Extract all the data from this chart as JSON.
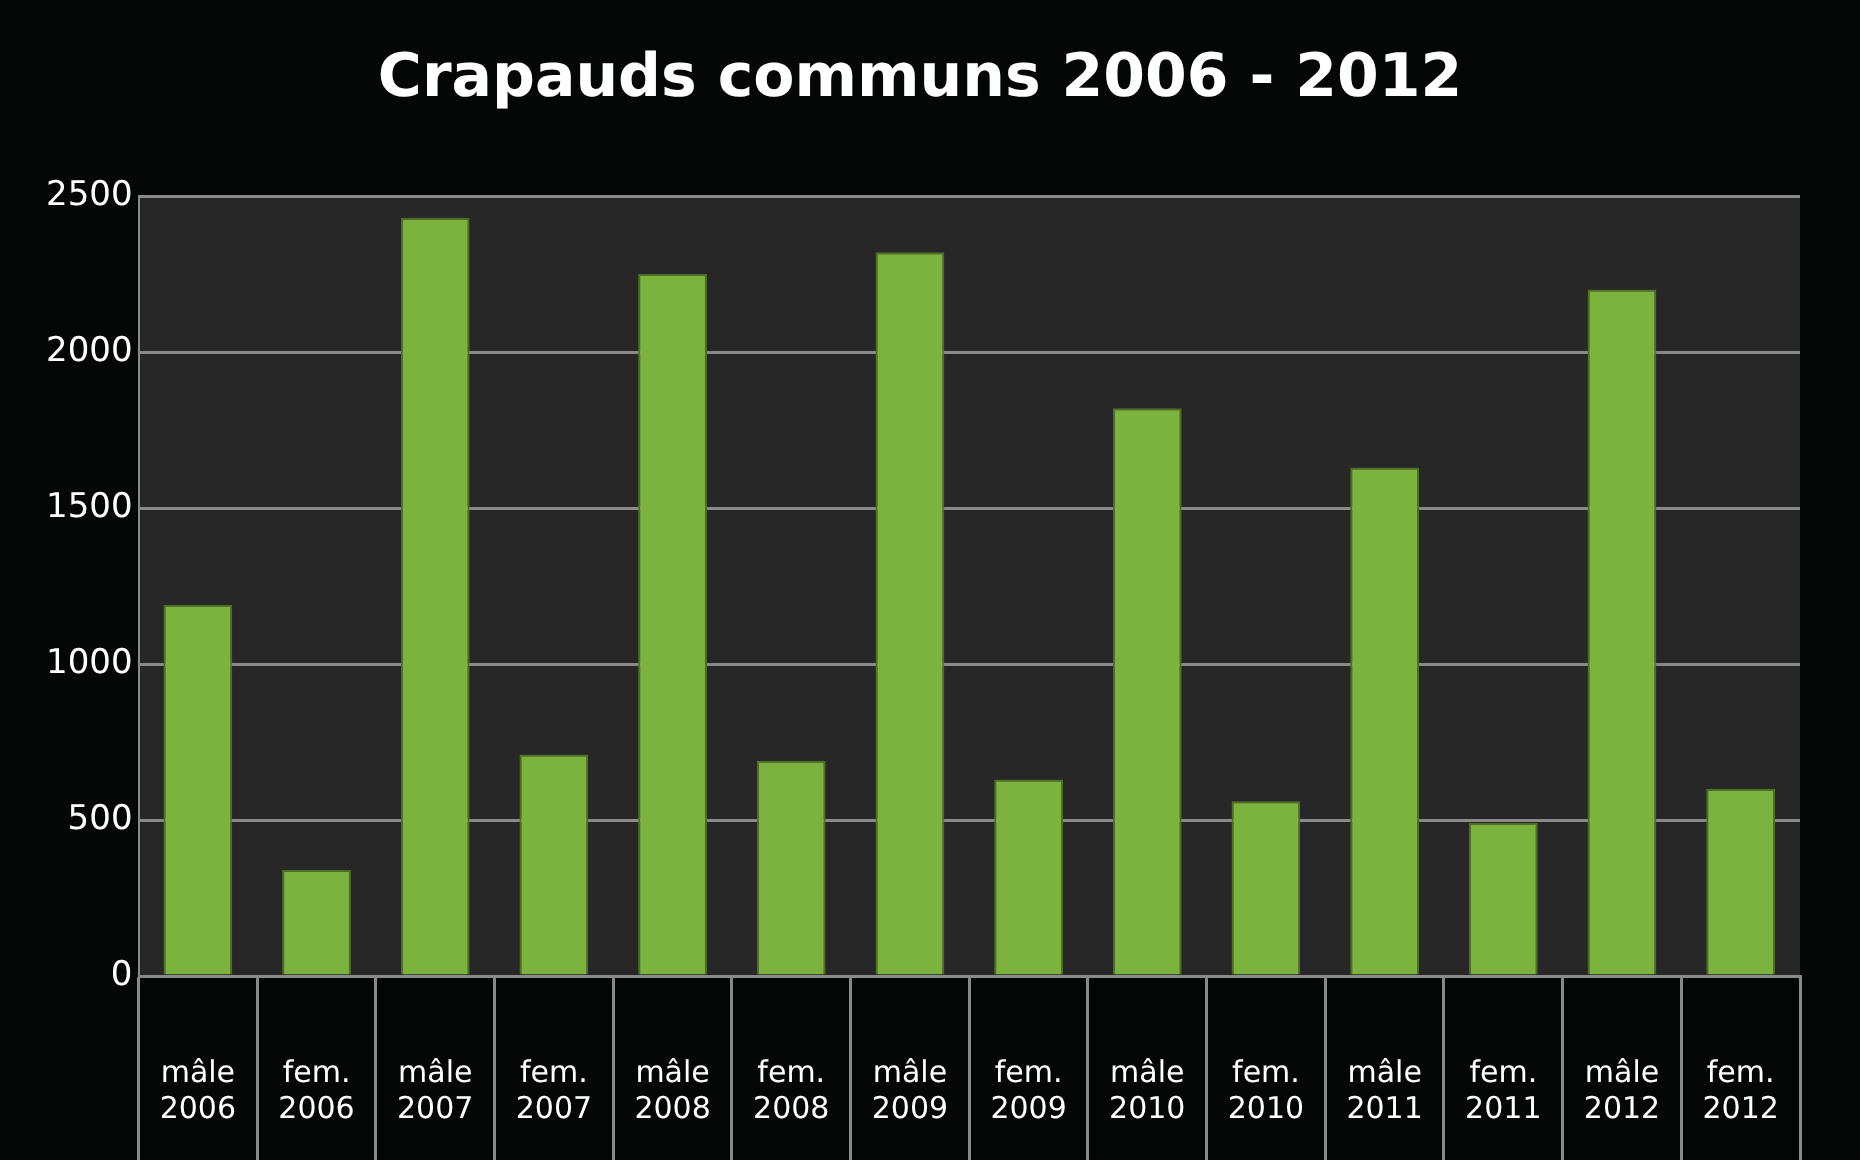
{
  "chart_data": {
    "type": "bar",
    "title": "Crapauds communs 2006 - 2012",
    "categories": [
      "mâle\n2006",
      "fem.\n2006",
      "mâle\n2007",
      "fem.\n2007",
      "mâle\n2008",
      "fem.\n2008",
      "mâle\n2009",
      "fem.\n2009",
      "mâle\n2010",
      "fem.\n2010",
      "mâle\n2011",
      "fem.\n2011",
      "mâle\n2012",
      "fem.\n2012"
    ],
    "values": [
      1190,
      340,
      2430,
      710,
      2250,
      690,
      2320,
      630,
      1820,
      560,
      1630,
      490,
      2200,
      600
    ],
    "color": "#7cb23e",
    "ylim": [
      0,
      2500
    ],
    "yticks": [
      0,
      500,
      1000,
      1500,
      2000,
      2500
    ],
    "grid": "y",
    "legend": false
  }
}
